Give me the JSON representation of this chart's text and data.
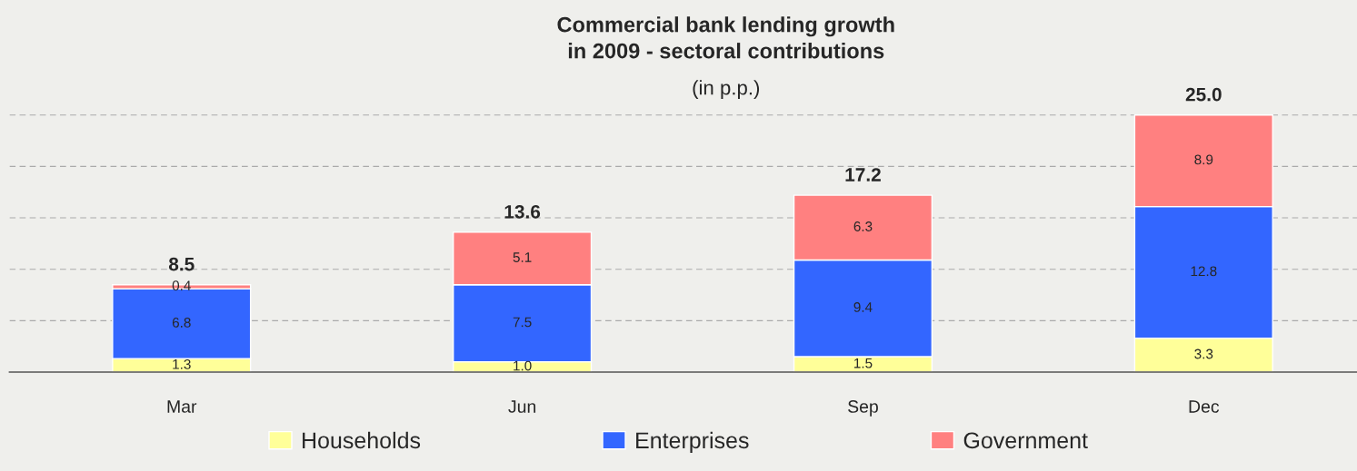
{
  "chart_data": {
    "type": "bar",
    "title": "Commercial bank lending growth\nin 2009 - sectoral contributions",
    "subtitle": "(in p.p.)",
    "categories": [
      "Mar",
      "Jun",
      "Sep",
      "Dec"
    ],
    "stacked": true,
    "series": [
      {
        "name": "Households",
        "color": "#ffff99",
        "values": [
          1.3,
          1.0,
          1.5,
          3.3
        ],
        "value_labels": [
          "1.3",
          "1.0",
          "1.5",
          "3.3"
        ]
      },
      {
        "name": "Enterprises",
        "color": "#3366ff",
        "values": [
          6.8,
          7.5,
          9.4,
          12.8
        ],
        "value_labels": [
          "6.8",
          "7.5",
          "9.4",
          "12.8"
        ]
      },
      {
        "name": "Government",
        "color": "#ff8080",
        "values": [
          0.4,
          5.1,
          6.3,
          8.9
        ],
        "value_labels": [
          "0.4",
          "5.1",
          "6.3",
          "8.9"
        ]
      }
    ],
    "totals": [
      "8.5",
      "13.6",
      "17.2",
      "25.0"
    ],
    "yticks": [
      {
        "value": 5,
        "label": null
      },
      {
        "value": 10,
        "label": null
      },
      {
        "value": 15,
        "label": null
      },
      {
        "value": 20,
        "label": null
      },
      {
        "value": 25,
        "label": null
      }
    ],
    "tick_labels": "x",
    "grid": "y",
    "legend": "bottom"
  }
}
